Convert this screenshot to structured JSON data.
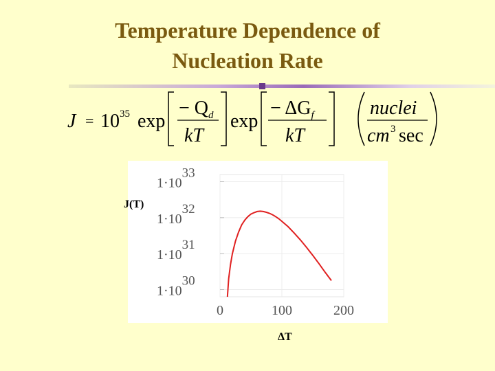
{
  "slide": {
    "title_line1": "Temperature Dependence of",
    "title_line2": "Nucleation Rate",
    "title_color": "#7a5a10",
    "background": "#ffffcc"
  },
  "formula": {
    "lhs": "J",
    "equals": "=",
    "coefficient_base": "10",
    "coefficient_exp": "35",
    "exp1_fn": "exp",
    "exp1_num": "− Q",
    "exp1_num_sub": "d",
    "exp1_den": "kT",
    "exp2_fn": "exp",
    "exp2_num": "− ΔG",
    "exp2_num_sub": "f",
    "exp2_den": "kT",
    "units_num": "nuclei",
    "units_den_a": "cm",
    "units_den_exp": "3",
    "units_den_b": "sec"
  },
  "chart_data": {
    "type": "line",
    "scale_y": "log",
    "xlabel": "ΔT",
    "ylabel": "J(T)",
    "xlim": [
      0,
      200
    ],
    "ylim_log10": [
      29.8,
      33.2
    ],
    "x_ticks": [
      "0",
      "100",
      "200"
    ],
    "y_ticks": [
      {
        "base": "1·10",
        "exp": "33"
      },
      {
        "base": "1·10",
        "exp": "32"
      },
      {
        "base": "1·10",
        "exp": "31"
      },
      {
        "base": "1·10",
        "exp": "30"
      }
    ],
    "grid": true,
    "line_color": "#e02020",
    "series": [
      {
        "x": [
          12,
          14,
          17,
          20,
          25,
          30,
          35,
          40,
          45,
          50,
          55,
          60,
          65,
          70,
          75,
          80,
          85,
          90,
          95,
          100,
          110,
          120,
          130,
          140,
          150,
          160,
          170,
          180
        ],
        "y_log10": [
          29.8,
          30.3,
          30.7,
          31.0,
          31.35,
          31.6,
          31.8,
          31.93,
          32.03,
          32.1,
          32.14,
          32.17,
          32.18,
          32.17,
          32.15,
          32.12,
          32.08,
          32.03,
          31.97,
          31.9,
          31.75,
          31.57,
          31.38,
          31.17,
          30.95,
          30.72,
          30.48,
          30.25
        ]
      }
    ]
  }
}
